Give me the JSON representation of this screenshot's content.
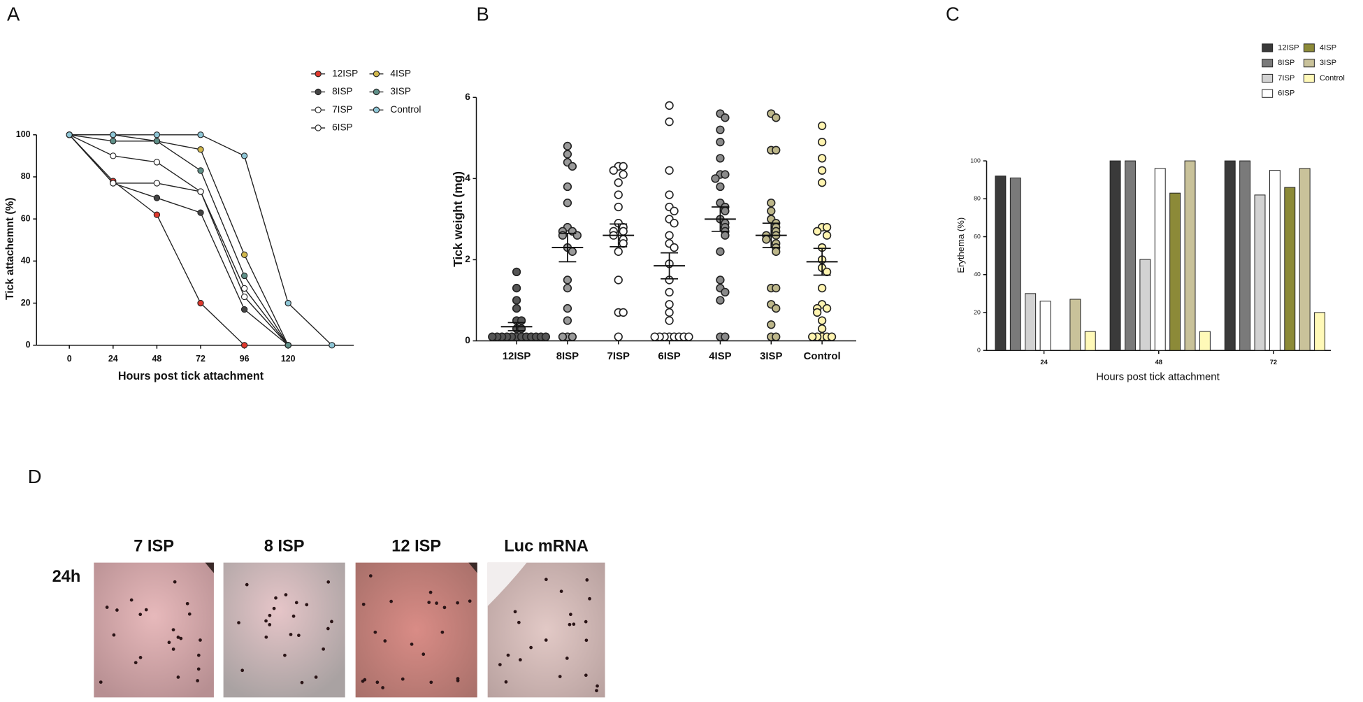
{
  "chart_data": [
    {
      "type": "line",
      "panel": "A",
      "x_label": "Hours post tick attachment",
      "y_label": "Tick attachemnt (%)",
      "x": [
        0,
        24,
        48,
        72,
        96,
        120,
        144
      ],
      "series": [
        {
          "name": "12ISP",
          "color": "#e0392d",
          "values": [
            100,
            78,
            62,
            20,
            0,
            0,
            null
          ]
        },
        {
          "name": "8ISP",
          "color": "#444444",
          "values": [
            100,
            77,
            70,
            63,
            17,
            0,
            null
          ]
        },
        {
          "name": "7ISP",
          "color": "#ffffff",
          "values": [
            100,
            90,
            87,
            73,
            27,
            0,
            null
          ]
        },
        {
          "name": "6ISP",
          "color": "#ffffff",
          "values": [
            100,
            77,
            77,
            73,
            23,
            0,
            null
          ]
        },
        {
          "name": "4ISP",
          "color": "#d2b84c",
          "values": [
            100,
            100,
            97,
            93,
            43,
            0,
            null
          ]
        },
        {
          "name": "3ISP",
          "color": "#5f9088",
          "values": [
            100,
            97,
            97,
            83,
            33,
            0,
            null
          ]
        },
        {
          "name": "Control",
          "color": "#8ec6d6",
          "values": [
            100,
            100,
            100,
            100,
            90,
            20,
            0
          ]
        }
      ],
      "xlim": [
        -18,
        156
      ],
      "xticks": [
        0,
        24,
        48,
        72,
        96,
        120
      ],
      "ylim": [
        0,
        100
      ],
      "yticks": [
        0,
        20,
        40,
        60,
        80,
        100
      ],
      "grid": false,
      "legend": "top right"
    },
    {
      "type": "dot",
      "panel": "B",
      "y_label": "Tick weight (mg)",
      "categories": [
        "12ISP",
        "8ISP",
        "7ISP",
        "6ISP",
        "4ISP",
        "3ISP",
        "Control"
      ],
      "colors": [
        "#555555",
        "#9a9a9a",
        "#ffffff",
        "#ffffff",
        "#8a8a8a",
        "#bdb78a",
        "#fff4b0"
      ],
      "values": [
        [
          1.7,
          1.3,
          1.0,
          0.8,
          0.5,
          0.5,
          0.3,
          0.3,
          0.1,
          0.1,
          0.1,
          0.1,
          0.1,
          0.1,
          0.1,
          0.1,
          0.1,
          0.1,
          0.1,
          0.1
        ],
        [
          4.8,
          4.6,
          4.4,
          4.3,
          3.8,
          3.4,
          2.8,
          2.7,
          2.7,
          2.6,
          2.6,
          2.3,
          2.2,
          1.5,
          1.3,
          0.8,
          0.5,
          0.1,
          0.1,
          0.1
        ],
        [
          4.3,
          4.3,
          4.2,
          4.1,
          3.9,
          3.6,
          3.3,
          2.9,
          2.8,
          2.7,
          2.7,
          2.6,
          2.5,
          2.4,
          2.2,
          1.5,
          0.7,
          0.7,
          0.1
        ],
        [
          5.8,
          5.4,
          4.2,
          3.6,
          3.3,
          3.2,
          3.0,
          2.9,
          2.6,
          2.4,
          2.3,
          1.9,
          1.5,
          1.2,
          0.9,
          0.7,
          0.5,
          0.1,
          0.1,
          0.1,
          0.1,
          0.1,
          0.1,
          0.1,
          0.1
        ],
        [
          5.6,
          5.5,
          5.2,
          4.9,
          4.5,
          4.1,
          4.1,
          4.0,
          3.8,
          3.4,
          3.3,
          3.2,
          3.0,
          2.9,
          2.8,
          2.7,
          2.6,
          2.2,
          1.5,
          1.3,
          1.2,
          1.0,
          0.1,
          0.1
        ],
        [
          5.6,
          5.5,
          4.7,
          4.7,
          3.4,
          3.2,
          3.0,
          2.9,
          2.8,
          2.7,
          2.6,
          2.6,
          2.5,
          2.4,
          2.3,
          2.2,
          1.3,
          1.3,
          0.9,
          0.8,
          0.4,
          0.1,
          0.1
        ],
        [
          5.3,
          4.9,
          4.5,
          4.2,
          3.9,
          2.8,
          2.8,
          2.7,
          2.6,
          2.3,
          2.0,
          1.8,
          1.7,
          1.3,
          0.9,
          0.8,
          0.8,
          0.7,
          0.5,
          0.3,
          0.1,
          0.1,
          0.1,
          0.1,
          0.1
        ]
      ],
      "means": [
        0.35,
        2.3,
        2.6,
        1.85,
        3.0,
        2.6,
        1.95
      ],
      "sems": [
        0.1,
        0.35,
        0.28,
        0.32,
        0.3,
        0.3,
        0.33
      ],
      "ylim": [
        0,
        6
      ],
      "yticks": [
        0,
        2,
        4,
        6
      ],
      "grid": false
    },
    {
      "type": "bar",
      "panel": "C",
      "x_label": "Hours post tick attachment",
      "y_label": "Erythema (%)",
      "categories": [
        "24",
        "48",
        "72"
      ],
      "series": [
        {
          "name": "12ISP",
          "color": "#3a3a3a",
          "values": [
            92,
            100,
            100
          ]
        },
        {
          "name": "8ISP",
          "color": "#7a7a7a",
          "values": [
            91,
            100,
            100
          ]
        },
        {
          "name": "7ISP",
          "color": "#d2d2d2",
          "values": [
            30,
            48,
            82
          ]
        },
        {
          "name": "6ISP",
          "color": "#ffffff",
          "values": [
            26,
            96,
            95
          ]
        },
        {
          "name": "4ISP",
          "color": "#8c8a38",
          "values": [
            0,
            83,
            86
          ]
        },
        {
          "name": "3ISP",
          "color": "#c9c29a",
          "values": [
            27,
            100,
            96
          ]
        },
        {
          "name": "Control",
          "color": "#fff9b8",
          "values": [
            10,
            10,
            20
          ]
        }
      ],
      "ylim": [
        0,
        100
      ],
      "yticks": [
        0,
        20,
        40,
        60,
        80,
        100
      ],
      "grid": false,
      "legend": "top right"
    }
  ],
  "panel_d": {
    "panel": "D",
    "row_label": "24h",
    "columns": [
      "7 ISP",
      "8 ISP",
      "12 ISP",
      "Luc mRNA"
    ]
  }
}
